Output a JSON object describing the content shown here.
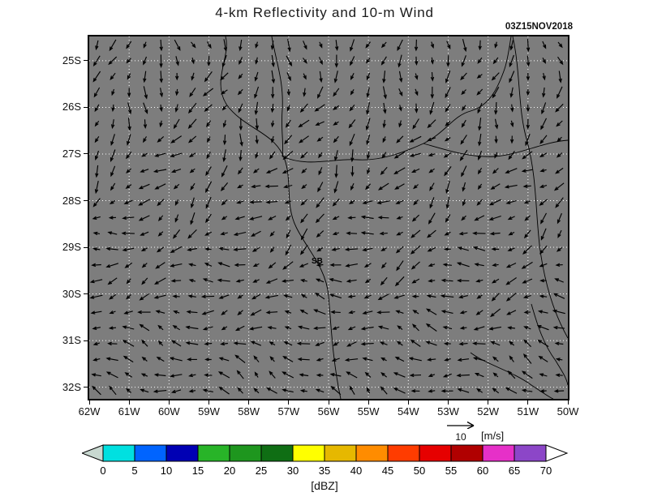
{
  "chart_data": {
    "type": "map_wind_vectors",
    "title": "4-km Reflectivity and 10-m Wind",
    "timestamp": "03Z15NOV2018",
    "x_ticks": [
      "62W",
      "61W",
      "60W",
      "59W",
      "58W",
      "57W",
      "56W",
      "55W",
      "54W",
      "53W",
      "52W",
      "51W",
      "50W"
    ],
    "y_ticks": [
      "25S",
      "26S",
      "27S",
      "28S",
      "29S",
      "30S",
      "31S",
      "32S"
    ],
    "map_background": "#7d7d7d",
    "grid": {
      "color": "#ffffff",
      "style": "dotted"
    },
    "annotations": [
      {
        "text": "SB"
      }
    ],
    "wind_reference": {
      "value": "10",
      "units": "[m/s]"
    },
    "vectors": {
      "color": "#000000",
      "cols": 30,
      "rows": 23
    },
    "colorbar": {
      "units_label": "[dBZ]",
      "tick_labels": [
        "0",
        "5",
        "10",
        "15",
        "20",
        "25",
        "30",
        "35",
        "40",
        "45",
        "50",
        "55",
        "60",
        "65",
        "70"
      ],
      "segment_colors": [
        "#00e0e0",
        "#0064ff",
        "#0000b4",
        "#28b428",
        "#1e961e",
        "#0f6e14",
        "#ffff00",
        "#e6b800",
        "#ff8c00",
        "#ff3c00",
        "#e60000",
        "#b00000",
        "#e630c8",
        "#8c46c8"
      ],
      "left_arrow_color": "#c8d8d0",
      "right_arrow_color": "#ffffff"
    }
  }
}
